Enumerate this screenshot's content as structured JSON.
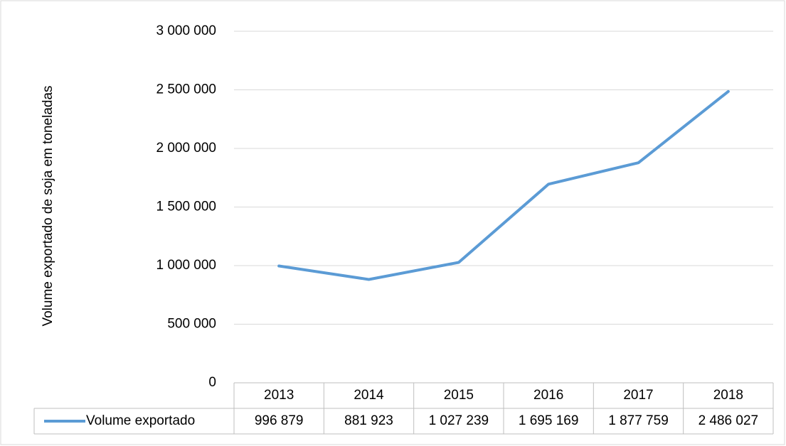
{
  "chart_data": {
    "type": "line",
    "y_label": "Volume exportado de soja em toneladas",
    "categories": [
      "2013",
      "2014",
      "2015",
      "2016",
      "2017",
      "2018"
    ],
    "series": [
      {
        "name": "Volume exportado",
        "color": "#5b9bd5",
        "values": [
          996879,
          881923,
          1027239,
          1695169,
          1877759,
          2486027
        ],
        "value_labels": [
          "996 879",
          "881 923",
          "1 027 239",
          "1 695 169",
          "1 877 759",
          "2 486 027"
        ]
      }
    ],
    "ylim": [
      0,
      3000000
    ],
    "yticks": [
      0,
      {
        "value": 500000,
        "label": "500 000"
      },
      {
        "value": 1000000,
        "label": "1 000 000"
      },
      {
        "value": 1500000,
        "label": "1 500 000"
      },
      {
        "value": 2000000,
        "label": "2 000 000"
      },
      {
        "value": 2500000,
        "label": "2 500 000"
      },
      {
        "value": 3000000,
        "label": "3 000 000"
      }
    ],
    "grid": true
  }
}
